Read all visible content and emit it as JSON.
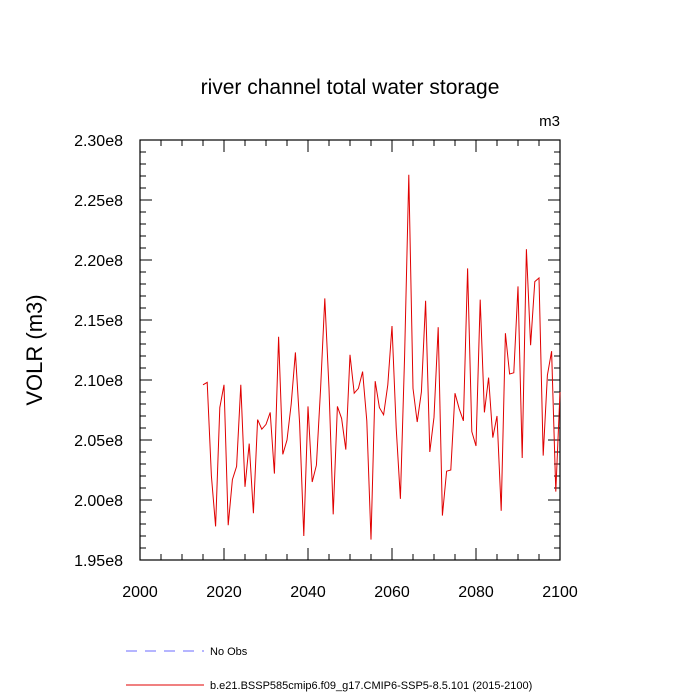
{
  "chart_data": {
    "type": "line",
    "title": "river channel total water storage",
    "units": "m3",
    "xlabel": "",
    "ylabel": "VOLR  (m3)",
    "xlim": [
      2000,
      2100
    ],
    "ylim": [
      195000000,
      230000000
    ],
    "x_ticks": [
      2000,
      2020,
      2040,
      2060,
      2080,
      2100
    ],
    "x_tick_labels": [
      "2000",
      "2020",
      "2040",
      "2060",
      "2080",
      "2100"
    ],
    "y_ticks": [
      195000000,
      200000000,
      205000000,
      210000000,
      215000000,
      220000000,
      225000000,
      230000000
    ],
    "y_tick_labels": [
      "1.95e8",
      "2.00e8",
      "2.05e8",
      "2.10e8",
      "2.15e8",
      "2.20e8",
      "2.25e8",
      "2.30e8"
    ],
    "series": [
      {
        "name": "b.e21.BSSP585cmip6.f09_g17.CMIP6-SSP5-8.5.101 (2015-2100)",
        "color": "#e00000",
        "style": "solid",
        "x": [
          2015,
          2016,
          2017,
          2018,
          2019,
          2020,
          2021,
          2022,
          2023,
          2024,
          2025,
          2026,
          2027,
          2028,
          2029,
          2030,
          2031,
          2032,
          2033,
          2034,
          2035,
          2036,
          2037,
          2038,
          2039,
          2040,
          2041,
          2042,
          2043,
          2044,
          2045,
          2046,
          2047,
          2048,
          2049,
          2050,
          2051,
          2052,
          2053,
          2054,
          2055,
          2056,
          2057,
          2058,
          2059,
          2060,
          2061,
          2062,
          2063,
          2064,
          2065,
          2066,
          2067,
          2068,
          2069,
          2070,
          2071,
          2072,
          2073,
          2074,
          2075,
          2076,
          2077,
          2078,
          2079,
          2080,
          2081,
          2082,
          2083,
          2084,
          2085,
          2086,
          2087,
          2088,
          2089,
          2090,
          2091,
          2092,
          2093,
          2094,
          2095,
          2096,
          2097,
          2098,
          2099,
          2100
        ],
        "values": [
          209600000,
          209800000,
          202000000,
          197800000,
          207700000,
          209600000,
          197900000,
          201700000,
          202800000,
          209600000,
          201100000,
          204700000,
          198900000,
          206700000,
          205900000,
          206300000,
          207300000,
          202200000,
          213600000,
          203800000,
          205000000,
          208000000,
          212300000,
          206400000,
          197000000,
          207800000,
          201500000,
          202900000,
          209300000,
          216800000,
          209300000,
          198800000,
          207800000,
          206800000,
          204200000,
          212100000,
          208900000,
          209300000,
          210700000,
          206600000,
          196700000,
          209900000,
          207700000,
          207100000,
          209600000,
          214500000,
          206000000,
          200100000,
          212000000,
          227100000,
          209300000,
          206500000,
          209000000,
          216600000,
          204000000,
          206900000,
          214400000,
          198700000,
          202400000,
          202500000,
          208900000,
          207600000,
          206600000,
          219300000,
          205700000,
          204500000,
          216700000,
          207300000,
          210200000,
          205200000,
          207000000,
          199100000,
          213900000,
          210500000,
          210600000,
          217800000,
          203500000,
          220900000,
          212900000,
          218200000,
          218500000,
          203700000,
          210400000,
          212400000,
          200700000,
          209000000
        ]
      },
      {
        "name": "No Obs",
        "color": "#6b6bff",
        "style": "dashed",
        "x": [],
        "values": []
      }
    ],
    "legend_position": "bottom-left"
  }
}
